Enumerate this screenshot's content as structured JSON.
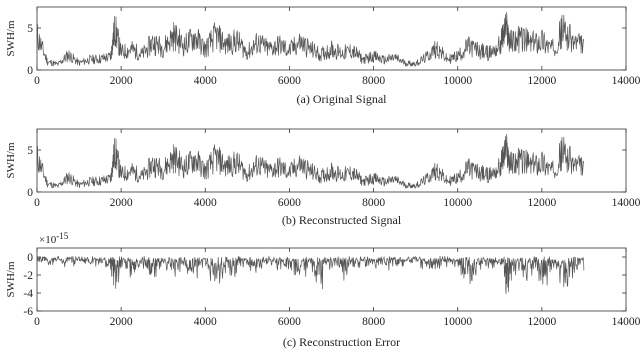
{
  "chart_data": [
    {
      "type": "line",
      "caption": "(a) Original Signal",
      "ylabel": "SWH/m",
      "xlim": [
        0,
        14000
      ],
      "ylim": [
        0,
        7.5
      ],
      "xticks": [
        0,
        2000,
        4000,
        6000,
        8000,
        10000,
        12000,
        14000
      ],
      "xtick_labels": [
        "0",
        "2000",
        "4000",
        "6000",
        "8000",
        "10000",
        "12000",
        "14000"
      ],
      "yticks": [
        0,
        5
      ],
      "ytick_labels": [
        "0",
        "5"
      ],
      "grid": false,
      "series_color": "#555555",
      "x": [
        0,
        250,
        500,
        750,
        1000,
        1250,
        1500,
        1750,
        1850,
        2000,
        2250,
        2500,
        2750,
        3000,
        3250,
        3500,
        3750,
        4000,
        4250,
        4500,
        4750,
        5000,
        5250,
        5500,
        5750,
        6000,
        6250,
        6500,
        6750,
        7000,
        7250,
        7500,
        7750,
        8000,
        8250,
        8500,
        8750,
        9000,
        9250,
        9500,
        9750,
        10000,
        10250,
        10500,
        10750,
        11000,
        11150,
        11250,
        11500,
        11750,
        12000,
        12250,
        12500,
        12750,
        13000
      ],
      "values": [
        5.0,
        1.2,
        0.8,
        2.2,
        1.0,
        1.5,
        1.6,
        1.9,
        6.0,
        2.5,
        3.0,
        2.2,
        4.0,
        3.2,
        5.0,
        3.5,
        4.8,
        3.0,
        5.0,
        3.6,
        4.2,
        2.5,
        4.0,
        3.0,
        3.6,
        2.8,
        4.0,
        3.0,
        2.2,
        3.0,
        2.4,
        2.8,
        1.5,
        2.0,
        1.4,
        1.8,
        1.0,
        0.9,
        1.8,
        3.2,
        1.5,
        2.0,
        3.4,
        2.8,
        2.4,
        3.5,
        6.2,
        4.0,
        4.6,
        3.8,
        4.4,
        3.0,
        5.8,
        4.0,
        3.5
      ]
    },
    {
      "type": "line",
      "caption": "(b) Reconstructed Signal",
      "ylabel": "SWH/m",
      "xlim": [
        0,
        14000
      ],
      "ylim": [
        0,
        7.5
      ],
      "xticks": [
        0,
        2000,
        4000,
        6000,
        8000,
        10000,
        12000,
        14000
      ],
      "xtick_labels": [
        "0",
        "2000",
        "4000",
        "6000",
        "8000",
        "10000",
        "12000",
        "14000"
      ],
      "yticks": [
        0,
        5
      ],
      "ytick_labels": [
        "0",
        "5"
      ],
      "grid": false,
      "series_color": "#555555",
      "x": [
        0,
        250,
        500,
        750,
        1000,
        1250,
        1500,
        1750,
        1850,
        2000,
        2250,
        2500,
        2750,
        3000,
        3250,
        3500,
        3750,
        4000,
        4250,
        4500,
        4750,
        5000,
        5250,
        5500,
        5750,
        6000,
        6250,
        6500,
        6750,
        7000,
        7250,
        7500,
        7750,
        8000,
        8250,
        8500,
        8750,
        9000,
        9250,
        9500,
        9750,
        10000,
        10250,
        10500,
        10750,
        11000,
        11150,
        11250,
        11500,
        11750,
        12000,
        12250,
        12500,
        12750,
        13000
      ],
      "values": [
        5.0,
        1.2,
        0.8,
        2.2,
        1.0,
        1.5,
        1.6,
        1.9,
        6.0,
        2.5,
        3.0,
        2.2,
        4.0,
        3.2,
        5.0,
        3.5,
        4.8,
        3.0,
        5.0,
        3.6,
        4.2,
        2.5,
        4.0,
        3.0,
        3.6,
        2.8,
        4.0,
        3.0,
        2.2,
        3.0,
        2.4,
        2.8,
        1.5,
        2.0,
        1.4,
        1.8,
        1.0,
        0.9,
        1.8,
        3.2,
        1.5,
        2.0,
        3.4,
        2.8,
        2.4,
        3.5,
        6.2,
        4.0,
        4.6,
        3.8,
        4.4,
        3.0,
        5.8,
        4.0,
        3.5
      ]
    },
    {
      "type": "line",
      "caption": "(c) Reconstruction Error",
      "ylabel": "SWH/m",
      "exponent_label": "×10",
      "exponent_power": "-15",
      "xlim": [
        0,
        14000
      ],
      "ylim": [
        -6,
        1
      ],
      "xticks": [
        0,
        2000,
        4000,
        6000,
        8000,
        10000,
        12000,
        14000
      ],
      "xtick_labels": [
        "0",
        "2000",
        "4000",
        "6000",
        "8000",
        "10000",
        "12000",
        "14000"
      ],
      "yticks": [
        0,
        -2,
        -4,
        -6
      ],
      "ytick_labels": [
        "0",
        "-2",
        "-4",
        "-6"
      ],
      "grid": false,
      "series_color": "#555555",
      "x": [
        0,
        250,
        500,
        750,
        1000,
        1250,
        1500,
        1750,
        1850,
        2000,
        2250,
        2500,
        2750,
        3000,
        3250,
        3500,
        3750,
        4000,
        4250,
        4500,
        4750,
        5000,
        5250,
        5500,
        5750,
        6000,
        6250,
        6500,
        6750,
        7000,
        7250,
        7500,
        7750,
        8000,
        8250,
        8500,
        8750,
        9000,
        9250,
        9500,
        9750,
        10000,
        10250,
        10500,
        10750,
        11000,
        11150,
        11250,
        11500,
        11750,
        12000,
        12250,
        12500,
        12750,
        13000
      ],
      "values": [
        -0.3,
        -0.6,
        -0.4,
        -1.0,
        -0.5,
        -0.8,
        -0.7,
        -1.2,
        -3.5,
        -1.5,
        -2.0,
        -1.0,
        -2.5,
        -1.2,
        -2.8,
        -1.5,
        -3.0,
        -1.0,
        -3.5,
        -1.2,
        -2.0,
        -1.0,
        -2.2,
        -0.8,
        -1.5,
        -1.0,
        -2.2,
        -1.0,
        -3.5,
        -1.0,
        -2.5,
        -1.5,
        -1.0,
        -1.5,
        -0.8,
        -1.2,
        -0.5,
        -0.6,
        -1.2,
        -2.0,
        -0.8,
        -1.5,
        -2.5,
        -1.5,
        -1.0,
        -2.0,
        -4.2,
        -3.0,
        -2.5,
        -2.0,
        -3.0,
        -2.0,
        -3.5,
        -2.0,
        -1.5
      ]
    }
  ]
}
